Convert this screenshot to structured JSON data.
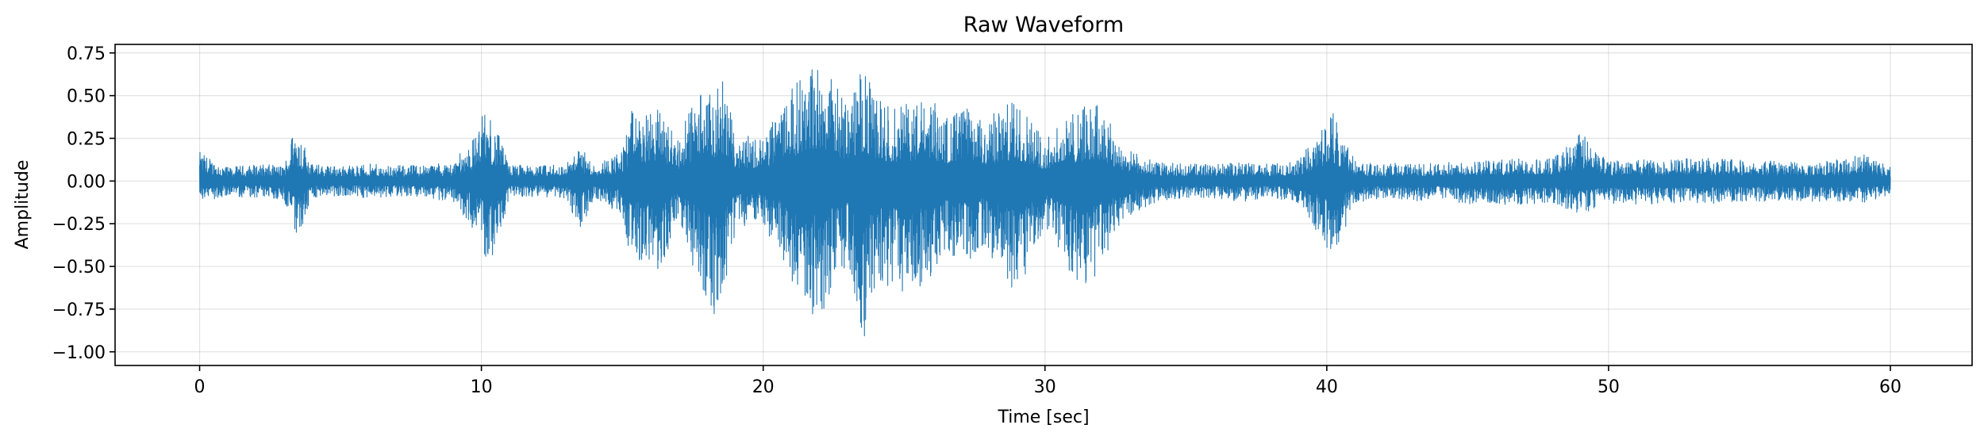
{
  "chart_data": {
    "type": "line",
    "title": "Raw Waveform",
    "xlabel": "Time [sec]",
    "ylabel": "Amplitude",
    "xlim": [
      -3,
      62.9
    ],
    "ylim": [
      -1.08,
      0.8
    ],
    "xticks": [
      0,
      10,
      20,
      30,
      40,
      50,
      60
    ],
    "xtick_labels": [
      "0",
      "10",
      "20",
      "30",
      "40",
      "50",
      "60"
    ],
    "yticks": [
      0.75,
      0.5,
      0.25,
      0.0,
      -0.25,
      -0.5,
      -0.75,
      -1.0
    ],
    "ytick_labels": [
      "0.75",
      "0.50",
      "0.25",
      "0.00",
      "−0.25",
      "−0.50",
      "−0.75",
      "−1.00"
    ],
    "grid": true,
    "line_color": "#1f77b4",
    "series": [
      {
        "x": [
          0,
          1,
          2,
          3,
          3.4,
          4,
          5,
          6,
          7,
          8,
          9,
          9.8,
          10.1,
          10.4,
          11,
          12,
          13,
          13.5,
          14,
          15,
          15.3,
          15.8,
          16.3,
          17,
          17.7,
          18.2,
          18.6,
          19,
          20,
          20.6,
          21.1,
          21.7,
          22.1,
          22.6,
          23,
          23.5,
          24,
          24.6,
          25.2,
          25.9,
          26.5,
          27.1,
          27.8,
          28.4,
          29,
          29.5,
          30,
          30.5,
          31,
          31.6,
          32,
          32.4,
          33,
          34,
          35,
          36,
          37,
          38,
          39,
          39.9,
          40.2,
          40.5,
          41,
          42,
          43,
          44,
          45,
          46,
          47,
          48,
          49,
          50,
          51,
          52,
          53,
          54,
          55,
          56,
          57,
          58,
          59,
          60
        ],
        "upper": [
          0.17,
          0.08,
          0.1,
          0.09,
          0.36,
          0.1,
          0.09,
          0.1,
          0.09,
          0.1,
          0.11,
          0.28,
          0.42,
          0.36,
          0.1,
          0.09,
          0.1,
          0.2,
          0.1,
          0.18,
          0.42,
          0.38,
          0.44,
          0.25,
          0.55,
          0.5,
          0.59,
          0.3,
          0.25,
          0.43,
          0.56,
          0.72,
          0.69,
          0.56,
          0.45,
          0.67,
          0.5,
          0.43,
          0.46,
          0.5,
          0.38,
          0.45,
          0.35,
          0.44,
          0.48,
          0.38,
          0.25,
          0.32,
          0.42,
          0.45,
          0.46,
          0.32,
          0.18,
          0.11,
          0.1,
          0.1,
          0.11,
          0.1,
          0.12,
          0.34,
          0.42,
          0.3,
          0.12,
          0.1,
          0.11,
          0.1,
          0.13,
          0.12,
          0.14,
          0.13,
          0.29,
          0.12,
          0.13,
          0.12,
          0.14,
          0.13,
          0.12,
          0.12,
          0.11,
          0.12,
          0.16,
          0.08
        ],
        "lower": [
          -0.12,
          -0.09,
          -0.1,
          -0.11,
          -0.38,
          -0.1,
          -0.09,
          -0.1,
          -0.09,
          -0.1,
          -0.12,
          -0.3,
          -0.46,
          -0.44,
          -0.1,
          -0.09,
          -0.1,
          -0.3,
          -0.1,
          -0.2,
          -0.46,
          -0.5,
          -0.55,
          -0.25,
          -0.6,
          -0.79,
          -0.7,
          -0.3,
          -0.25,
          -0.45,
          -0.61,
          -0.78,
          -0.77,
          -0.55,
          -0.5,
          -1.0,
          -0.6,
          -0.62,
          -0.68,
          -0.58,
          -0.43,
          -0.5,
          -0.38,
          -0.52,
          -0.68,
          -0.47,
          -0.3,
          -0.42,
          -0.58,
          -0.63,
          -0.48,
          -0.35,
          -0.2,
          -0.12,
          -0.1,
          -0.1,
          -0.12,
          -0.1,
          -0.13,
          -0.36,
          -0.48,
          -0.34,
          -0.13,
          -0.1,
          -0.12,
          -0.1,
          -0.14,
          -0.13,
          -0.15,
          -0.13,
          -0.2,
          -0.14,
          -0.14,
          -0.13,
          -0.14,
          -0.13,
          -0.12,
          -0.12,
          -0.12,
          -0.12,
          -0.13,
          -0.08
        ]
      }
    ]
  }
}
